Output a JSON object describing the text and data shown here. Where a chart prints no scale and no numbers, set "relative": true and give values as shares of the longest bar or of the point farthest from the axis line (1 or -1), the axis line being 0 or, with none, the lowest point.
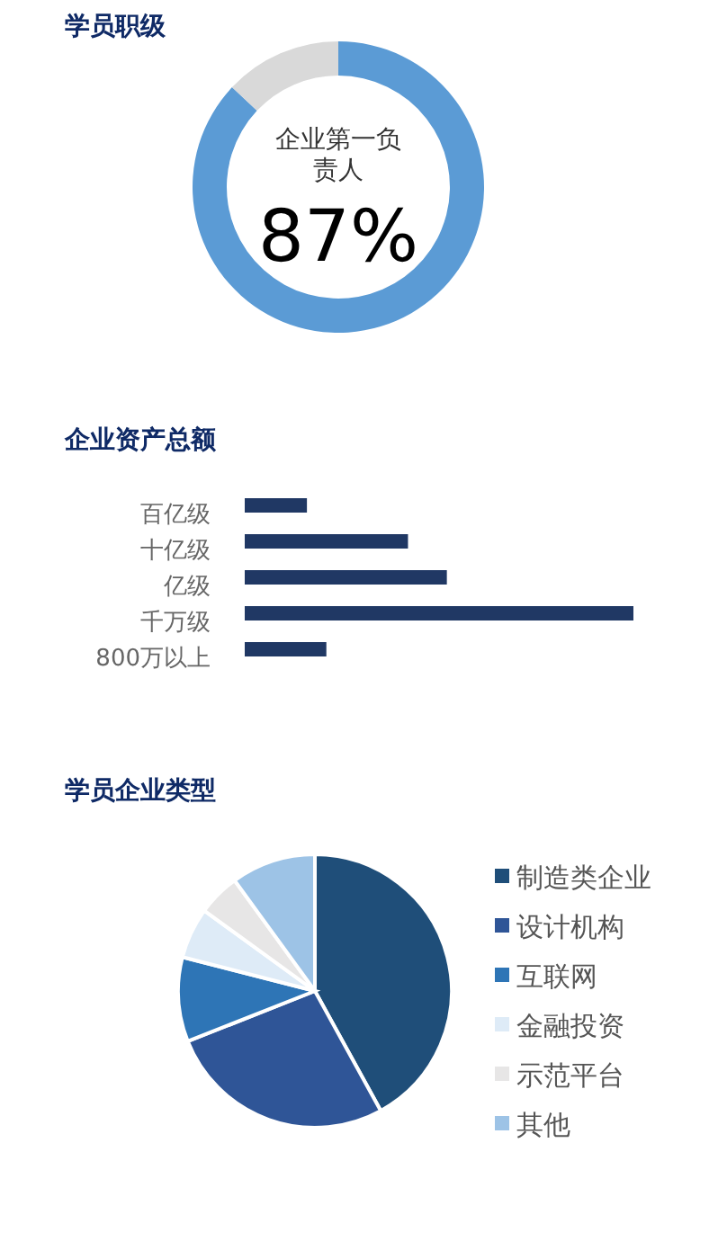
{
  "chart_data": [
    {
      "type": "donut",
      "title": "学员职级",
      "categories": [
        "企业第一负责人",
        null
      ],
      "values": [
        87,
        13
      ],
      "colors": [
        "#5b9bd5",
        "#d9d9d9"
      ],
      "value_labels": [
        "87%",
        null
      ]
    },
    {
      "type": "bar",
      "title": "企业资产总额",
      "orientation": "horizontal",
      "relative": true,
      "categories": [
        "百亿级",
        "十亿级",
        "亿级",
        "千万级",
        "800万以上"
      ],
      "values": [
        0.16,
        0.42,
        0.52,
        1,
        0.21
      ],
      "color": "#203864"
    },
    {
      "type": "pie",
      "title": "学员企业类型",
      "categories": [
        "制造类企业",
        "设计机构",
        "互联网",
        "金融投资",
        "示范平台",
        "其他"
      ],
      "values": [
        42,
        27,
        10,
        6,
        5,
        10
      ],
      "colors": [
        "#1f4e79",
        "#2f5597",
        "#2e75b6",
        "#deebf7",
        "#e7e6e6",
        "#9dc3e6"
      ],
      "legend": "right"
    }
  ]
}
